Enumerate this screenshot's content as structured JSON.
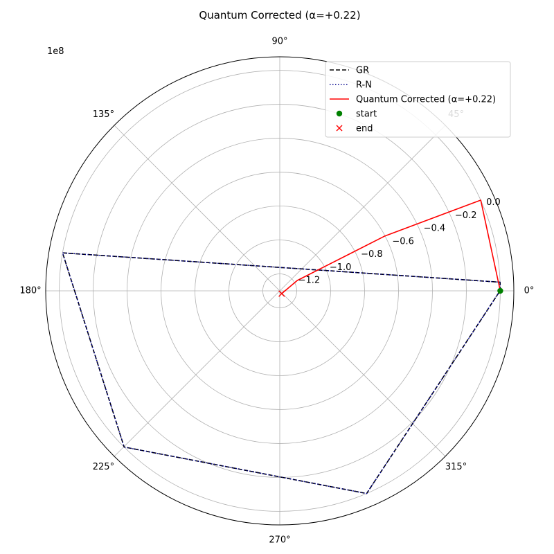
{
  "chart_data": {
    "type": "line",
    "projection": "polar",
    "title": "Quantum Corrected (α=+0.22)",
    "scale_label": "1e8",
    "theta_unit": "degrees",
    "theta_ticks": [
      "0°",
      "45°",
      "90°",
      "135°",
      "180°",
      "225°",
      "270°",
      "315°"
    ],
    "theta_tick_values": [
      0,
      45,
      90,
      135,
      180,
      225,
      270,
      315
    ],
    "r_ticks": [
      "−1.2",
      "−1.0",
      "−0.8",
      "−0.6",
      "−0.4",
      "−0.2",
      "0.0"
    ],
    "r_tick_values": [
      -1.2,
      -1.0,
      -0.8,
      -0.6,
      -0.4,
      -0.2,
      0.0
    ],
    "r_tick_angle_deg": 22.5,
    "rlim": [
      -1.3,
      0.08
    ],
    "grid": true,
    "legend": {
      "location": "top-right",
      "entries": [
        "GR",
        "R-N",
        "Quantum Corrected (α=+0.22)",
        "start",
        "end"
      ]
    },
    "series": [
      {
        "name": "GR",
        "style": "dashed",
        "color": "#000000",
        "theta": [
          0,
          2.25,
          170.08,
          225.1,
          293.2,
          0.1
        ],
        "r": [
          0.0,
          0.0,
          0.0,
          0.0,
          0.0,
          0.0
        ]
      },
      {
        "name": "R-N",
        "style": "dotted",
        "color": "#00008b",
        "theta": [
          0,
          2.25,
          170.08,
          225.1,
          293.2,
          0.1
        ],
        "r": [
          0.0,
          0.0,
          0.0,
          0.0,
          0.0,
          0.0
        ]
      },
      {
        "name": "Quantum Corrected (α=+0.22)",
        "style": "solid",
        "color": "#ff0000",
        "theta": [
          0,
          24.3,
          27.55,
          30.7,
          304.6
        ],
        "r": [
          0.0,
          0.0,
          -0.6,
          -1.18,
          -1.28
        ]
      }
    ],
    "markers": [
      {
        "name": "start",
        "symbol": "circle",
        "color": "#008000",
        "theta": 0,
        "r": 0.0
      },
      {
        "name": "end",
        "symbol": "x",
        "color": "#ff0000",
        "theta": 304.6,
        "r": -1.28
      }
    ]
  }
}
